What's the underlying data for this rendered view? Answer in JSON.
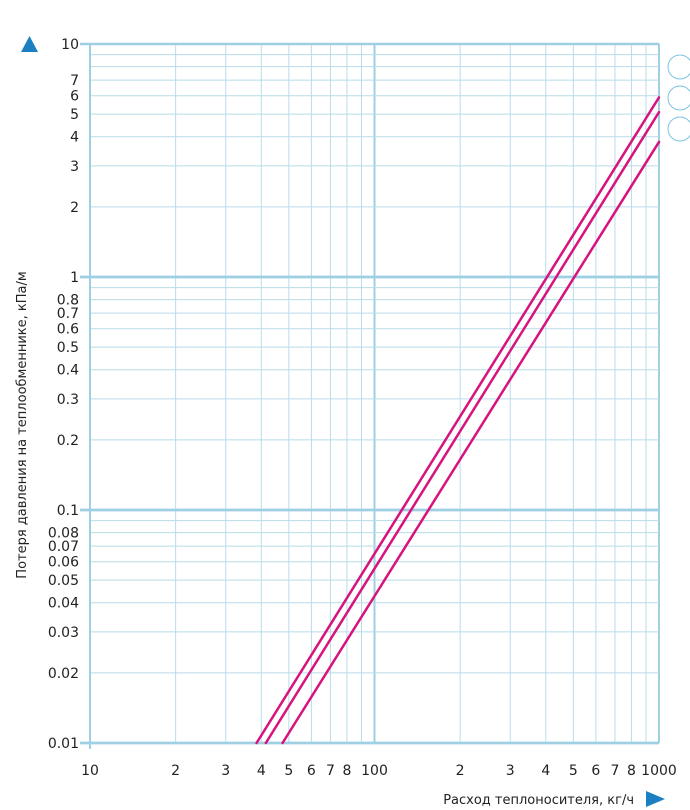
{
  "chart_data": {
    "type": "line",
    "xscale": "log",
    "yscale": "log",
    "xlim": [
      10,
      1000
    ],
    "ylim": [
      0.01,
      10
    ],
    "grid": true,
    "xlabel": "Расход теплоносителя, кг/ч",
    "ylabel": "Потеря давления на теплообменнике, кПа/м",
    "x_ticks": [
      {
        "value": 10,
        "label": "10"
      },
      {
        "value": 20,
        "label": "2"
      },
      {
        "value": 30,
        "label": "3"
      },
      {
        "value": 40,
        "label": "4"
      },
      {
        "value": 50,
        "label": "5"
      },
      {
        "value": 60,
        "label": "6"
      },
      {
        "value": 70,
        "label": "7"
      },
      {
        "value": 80,
        "label": "8"
      },
      {
        "value": 100,
        "label": "100"
      },
      {
        "value": 200,
        "label": "2"
      },
      {
        "value": 300,
        "label": "3"
      },
      {
        "value": 400,
        "label": "4"
      },
      {
        "value": 500,
        "label": "5"
      },
      {
        "value": 600,
        "label": "6"
      },
      {
        "value": 700,
        "label": "7"
      },
      {
        "value": 800,
        "label": "8"
      },
      {
        "value": 1000,
        "label": "1000"
      }
    ],
    "y_ticks": [
      {
        "value": 10,
        "label": "10"
      },
      {
        "value": 7,
        "label": "7"
      },
      {
        "value": 6,
        "label": "6"
      },
      {
        "value": 5,
        "label": "5"
      },
      {
        "value": 4,
        "label": "4"
      },
      {
        "value": 3,
        "label": "3"
      },
      {
        "value": 2,
        "label": "2"
      },
      {
        "value": 1,
        "label": "1"
      },
      {
        "value": 0.8,
        "label": "0.8"
      },
      {
        "value": 0.7,
        "label": "0.7"
      },
      {
        "value": 0.6,
        "label": "0.6"
      },
      {
        "value": 0.5,
        "label": "0.5"
      },
      {
        "value": 0.4,
        "label": "0.4"
      },
      {
        "value": 0.3,
        "label": "0.3"
      },
      {
        "value": 0.2,
        "label": "0.2"
      },
      {
        "value": 0.1,
        "label": "0.1"
      },
      {
        "value": 0.08,
        "label": "0.08"
      },
      {
        "value": 0.07,
        "label": "0.07"
      },
      {
        "value": 0.06,
        "label": "0.06"
      },
      {
        "value": 0.05,
        "label": "0.05"
      },
      {
        "value": 0.04,
        "label": "0.04"
      },
      {
        "value": 0.03,
        "label": "0.03"
      },
      {
        "value": 0.02,
        "label": "0.02"
      },
      {
        "value": 0.01,
        "label": "0.01"
      }
    ],
    "series": [
      {
        "color": "#d6137e",
        "points": [
          [
            38.5,
            0.01
          ],
          [
            1000,
            5.9
          ]
        ]
      },
      {
        "color": "#d6137e",
        "points": [
          [
            41.5,
            0.01
          ],
          [
            1000,
            5.1
          ]
        ]
      },
      {
        "color": "#d6137e",
        "points": [
          [
            47.5,
            0.01
          ],
          [
            1000,
            3.8
          ]
        ]
      }
    ],
    "series_markers": 3
  },
  "colors": {
    "grid": "#b9dcea",
    "axis": "#9fcfe3",
    "series": "#d6137e",
    "arrow": "#1b7fc2",
    "marker": "#7ec3de"
  }
}
